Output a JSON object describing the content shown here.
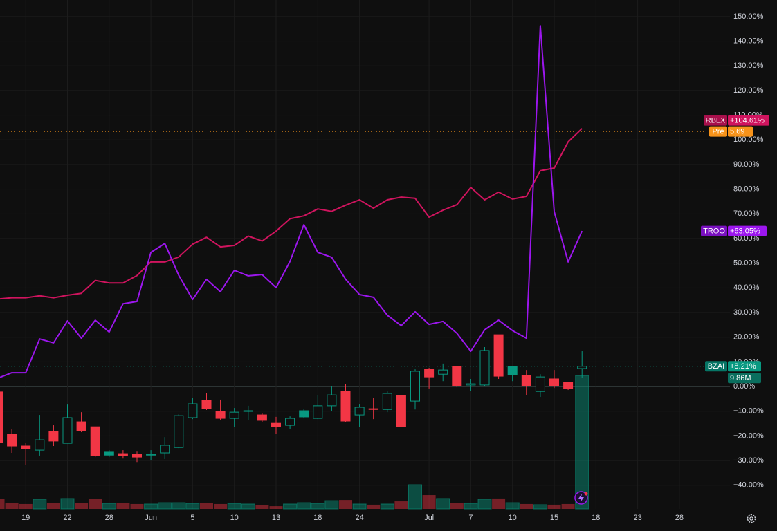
{
  "chart_data": {
    "type": "candlestick",
    "categories": [
      null,
      null,
      "19",
      null,
      null,
      "22",
      null,
      null,
      "28",
      null,
      null,
      "Jun",
      null,
      null,
      "5",
      null,
      null,
      "10",
      null,
      null,
      "13",
      null,
      null,
      "18",
      null,
      null,
      "24",
      null,
      null,
      null,
      null,
      "Jul",
      null,
      null,
      "7",
      null,
      null,
      "10",
      null,
      null,
      "15",
      null,
      null,
      "18",
      null,
      null,
      "23",
      null,
      null,
      "28"
    ],
    "ylim": [
      -49.6,
      156.7
    ],
    "yticks": [
      {
        "value": 150,
        "label": "150.00%"
      },
      {
        "value": 140,
        "label": "140.00%"
      },
      {
        "value": 130,
        "label": "130.00%"
      },
      {
        "value": 120,
        "label": "120.00%"
      },
      {
        "value": 110,
        "label": "110.00%"
      },
      {
        "value": 100,
        "label": "100.00%"
      },
      {
        "value": 90,
        "label": "90.00%"
      },
      {
        "value": 80,
        "label": "80.00%"
      },
      {
        "value": 70,
        "label": "70.00%"
      },
      {
        "value": 60,
        "label": "60.00%"
      },
      {
        "value": 50,
        "label": "50.00%"
      },
      {
        "value": 40,
        "label": "40.00%"
      },
      {
        "value": 30,
        "label": "30.00%"
      },
      {
        "value": 20,
        "label": "20.00%"
      },
      {
        "value": 10,
        "label": "10.00%"
      },
      {
        "value": 0,
        "label": "0.00%"
      },
      {
        "value": -10,
        "label": "−10.00%"
      },
      {
        "value": -20,
        "label": "−20.00%"
      },
      {
        "value": -30,
        "label": "−30.00%"
      },
      {
        "value": -40,
        "label": "−40.00%"
      }
    ],
    "grid": true,
    "candles": {
      "name": "BZAI",
      "up_color": "#089981",
      "down_color": "#f23645",
      "last_label": "+8.21%",
      "open": [
        -2.2,
        -19.3,
        -24.1,
        -25.8,
        -18.2,
        -23,
        -14.3,
        -16.3,
        -26.6,
        -27.2,
        -27.5,
        -27.8,
        -26.9,
        -24.7,
        -12.6,
        -5.6,
        -10.1,
        -12.9,
        -9.8,
        -11.5,
        -14.9,
        -15.7,
        -9.8,
        -12.9,
        -7.8,
        -2.0,
        -11.5,
        -9.0,
        -9.3,
        -3.6,
        -5.9,
        7.0,
        5.0,
        8.1,
        0.6,
        0.6,
        21.0,
        8.1,
        4.5,
        -2.0,
        3.1,
        1.7,
        7.3,
        null,
        null,
        null,
        null,
        null,
        null,
        null
      ],
      "high": [
        -2.2,
        -17.1,
        -22.7,
        -11.5,
        -15.7,
        -7.3,
        -10.4,
        -16.3,
        -25.8,
        -25.8,
        -26.4,
        -25.8,
        -20.5,
        -11.2,
        -4.5,
        -2.5,
        -5.3,
        -8.7,
        -7.8,
        -10.7,
        -12.3,
        -12.1,
        -9.0,
        -3.6,
        0,
        1.1,
        -7.3,
        -4.5,
        -2.0,
        -3.6,
        7.0,
        7.6,
        9.3,
        8.4,
        3.1,
        16.0,
        21.0,
        8.1,
        6.7,
        5.0,
        6.7,
        1.7,
        14.3,
        null,
        null,
        null,
        null,
        null,
        null,
        null
      ],
      "low": [
        -22.7,
        -26.9,
        -31.7,
        -28.0,
        -24.1,
        -23,
        -18.5,
        -28.6,
        -28.6,
        -29.2,
        -30.6,
        -30.0,
        -29.4,
        -25,
        -13.2,
        -9.5,
        -13.5,
        -16.3,
        -13.7,
        -14.3,
        -19.3,
        -17.1,
        -12.9,
        -13.2,
        -9.8,
        -14.3,
        -16.3,
        -13.2,
        -10.4,
        -16.3,
        -9.3,
        -0.8,
        2.2,
        -0.3,
        -1.7,
        0.3,
        3.1,
        2.2,
        -3.6,
        -4.2,
        -0.6,
        -1.4,
        3.6,
        null,
        null,
        null,
        null,
        null,
        null,
        null
      ],
      "close": [
        -22.7,
        -24.1,
        -25.2,
        -21.6,
        -22.1,
        -12.6,
        -17.9,
        -28.0,
        -27.8,
        -28.0,
        -28.6,
        -27.5,
        -23.8,
        -11.8,
        -7.0,
        -9.0,
        -12.9,
        -10.4,
        -10.1,
        -13.7,
        -16.3,
        -12.9,
        -12.3,
        -7.8,
        -3.4,
        -14.0,
        -8.4,
        -9.3,
        -2.8,
        -16.3,
        6.2,
        3.9,
        6.7,
        0.3,
        1.1,
        14.6,
        4.2,
        4.8,
        0.3,
        3.9,
        0.3,
        -0.8,
        8.21,
        null,
        null,
        null,
        null,
        null,
        null,
        null
      ]
    },
    "volume": {
      "last_label": "9.86M",
      "values": [
        0.72,
        0.41,
        0.36,
        0.72,
        0.41,
        0.77,
        0.41,
        0.72,
        0.41,
        0.41,
        0.36,
        0.36,
        0.46,
        0.46,
        0.41,
        0.41,
        0.36,
        0.41,
        0.36,
        0.26,
        0.2,
        0.36,
        0.46,
        0.41,
        0.61,
        0.66,
        0.36,
        0.31,
        0.36,
        0.56,
        1.79,
        1.02,
        0.77,
        0.46,
        0.41,
        0.72,
        0.77,
        0.46,
        0.36,
        0.31,
        0.31,
        0.36,
        9.86,
        null,
        null,
        null,
        null,
        null,
        null,
        null
      ]
    },
    "series": [
      {
        "name": "RBLX",
        "color": "#d0145e",
        "last_label": "+104.61%",
        "values": [
          35.5,
          36,
          36,
          36.8,
          36,
          37,
          37.8,
          43,
          42,
          42,
          45,
          50.5,
          50.5,
          52.5,
          57.7,
          60.5,
          56.6,
          57.2,
          61,
          59,
          63,
          68,
          69.2,
          72,
          71,
          73.5,
          75.7,
          72.3,
          75.7,
          76.8,
          76.3,
          68.7,
          71.5,
          73.7,
          80.7,
          75.7,
          78.8,
          76,
          77.1,
          87.5,
          88.6,
          99.2,
          104.61,
          null,
          null,
          null,
          null,
          null,
          null,
          null
        ]
      },
      {
        "name": "TROO",
        "color": "#9c16ee",
        "last_label": "+63.05%",
        "values": [
          3.4,
          5.6,
          5.6,
          19.3,
          17.7,
          26.6,
          19.6,
          26.9,
          22.1,
          33.6,
          34.5,
          54.4,
          58,
          45.1,
          35.3,
          43.5,
          38.4,
          47.1,
          44.9,
          45.4,
          40.1,
          50.7,
          65.6,
          54.4,
          52.4,
          43.5,
          37.3,
          36.2,
          28.9,
          24.7,
          30.3,
          25.2,
          26.4,
          21.6,
          14.3,
          23,
          26.9,
          22.7,
          19.6,
          146.3,
          70.9,
          50.5,
          63.05,
          null,
          null,
          null,
          null,
          null,
          null,
          null
        ]
      }
    ],
    "premarket": {
      "name": "Pre",
      "value_label": "5.69",
      "level": 103.4,
      "color": "#f7931a"
    }
  }
}
